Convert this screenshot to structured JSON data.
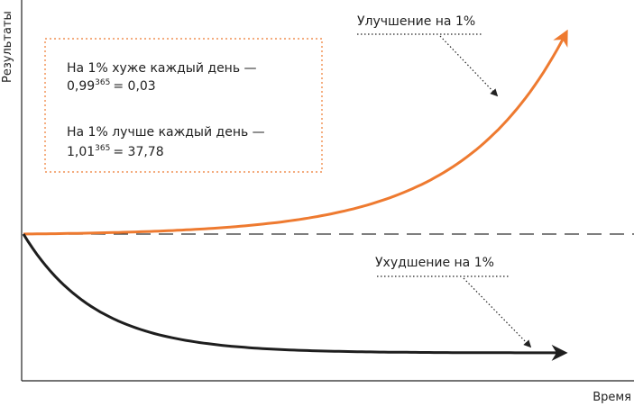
{
  "chart_data": {
    "type": "line",
    "title": "",
    "xlabel": "Время",
    "ylabel": "Результаты",
    "xlim": [
      0,
      365
    ],
    "grid": false,
    "baseline": 1,
    "series": [
      {
        "name": "Улучшение на 1%",
        "color": "#ee7a30",
        "trend": "exponential growth",
        "formula_base": "1,01",
        "exponent": "365",
        "result": "37,78"
      },
      {
        "name": "Ухудшение на 1%",
        "color": "#1e1e1e",
        "trend": "exponential decay",
        "formula_base": "0,99",
        "exponent": "365",
        "result": "0,03"
      }
    ],
    "annotations": {
      "worse_line": "На 1% хуже каждый день —",
      "worse_base": "0,99",
      "worse_exp": "365",
      "worse_result": "= 0,03",
      "better_line": "На 1% лучше каждый день —",
      "better_base": "1,01",
      "better_exp": "365",
      "better_result": "= 37,78"
    }
  }
}
